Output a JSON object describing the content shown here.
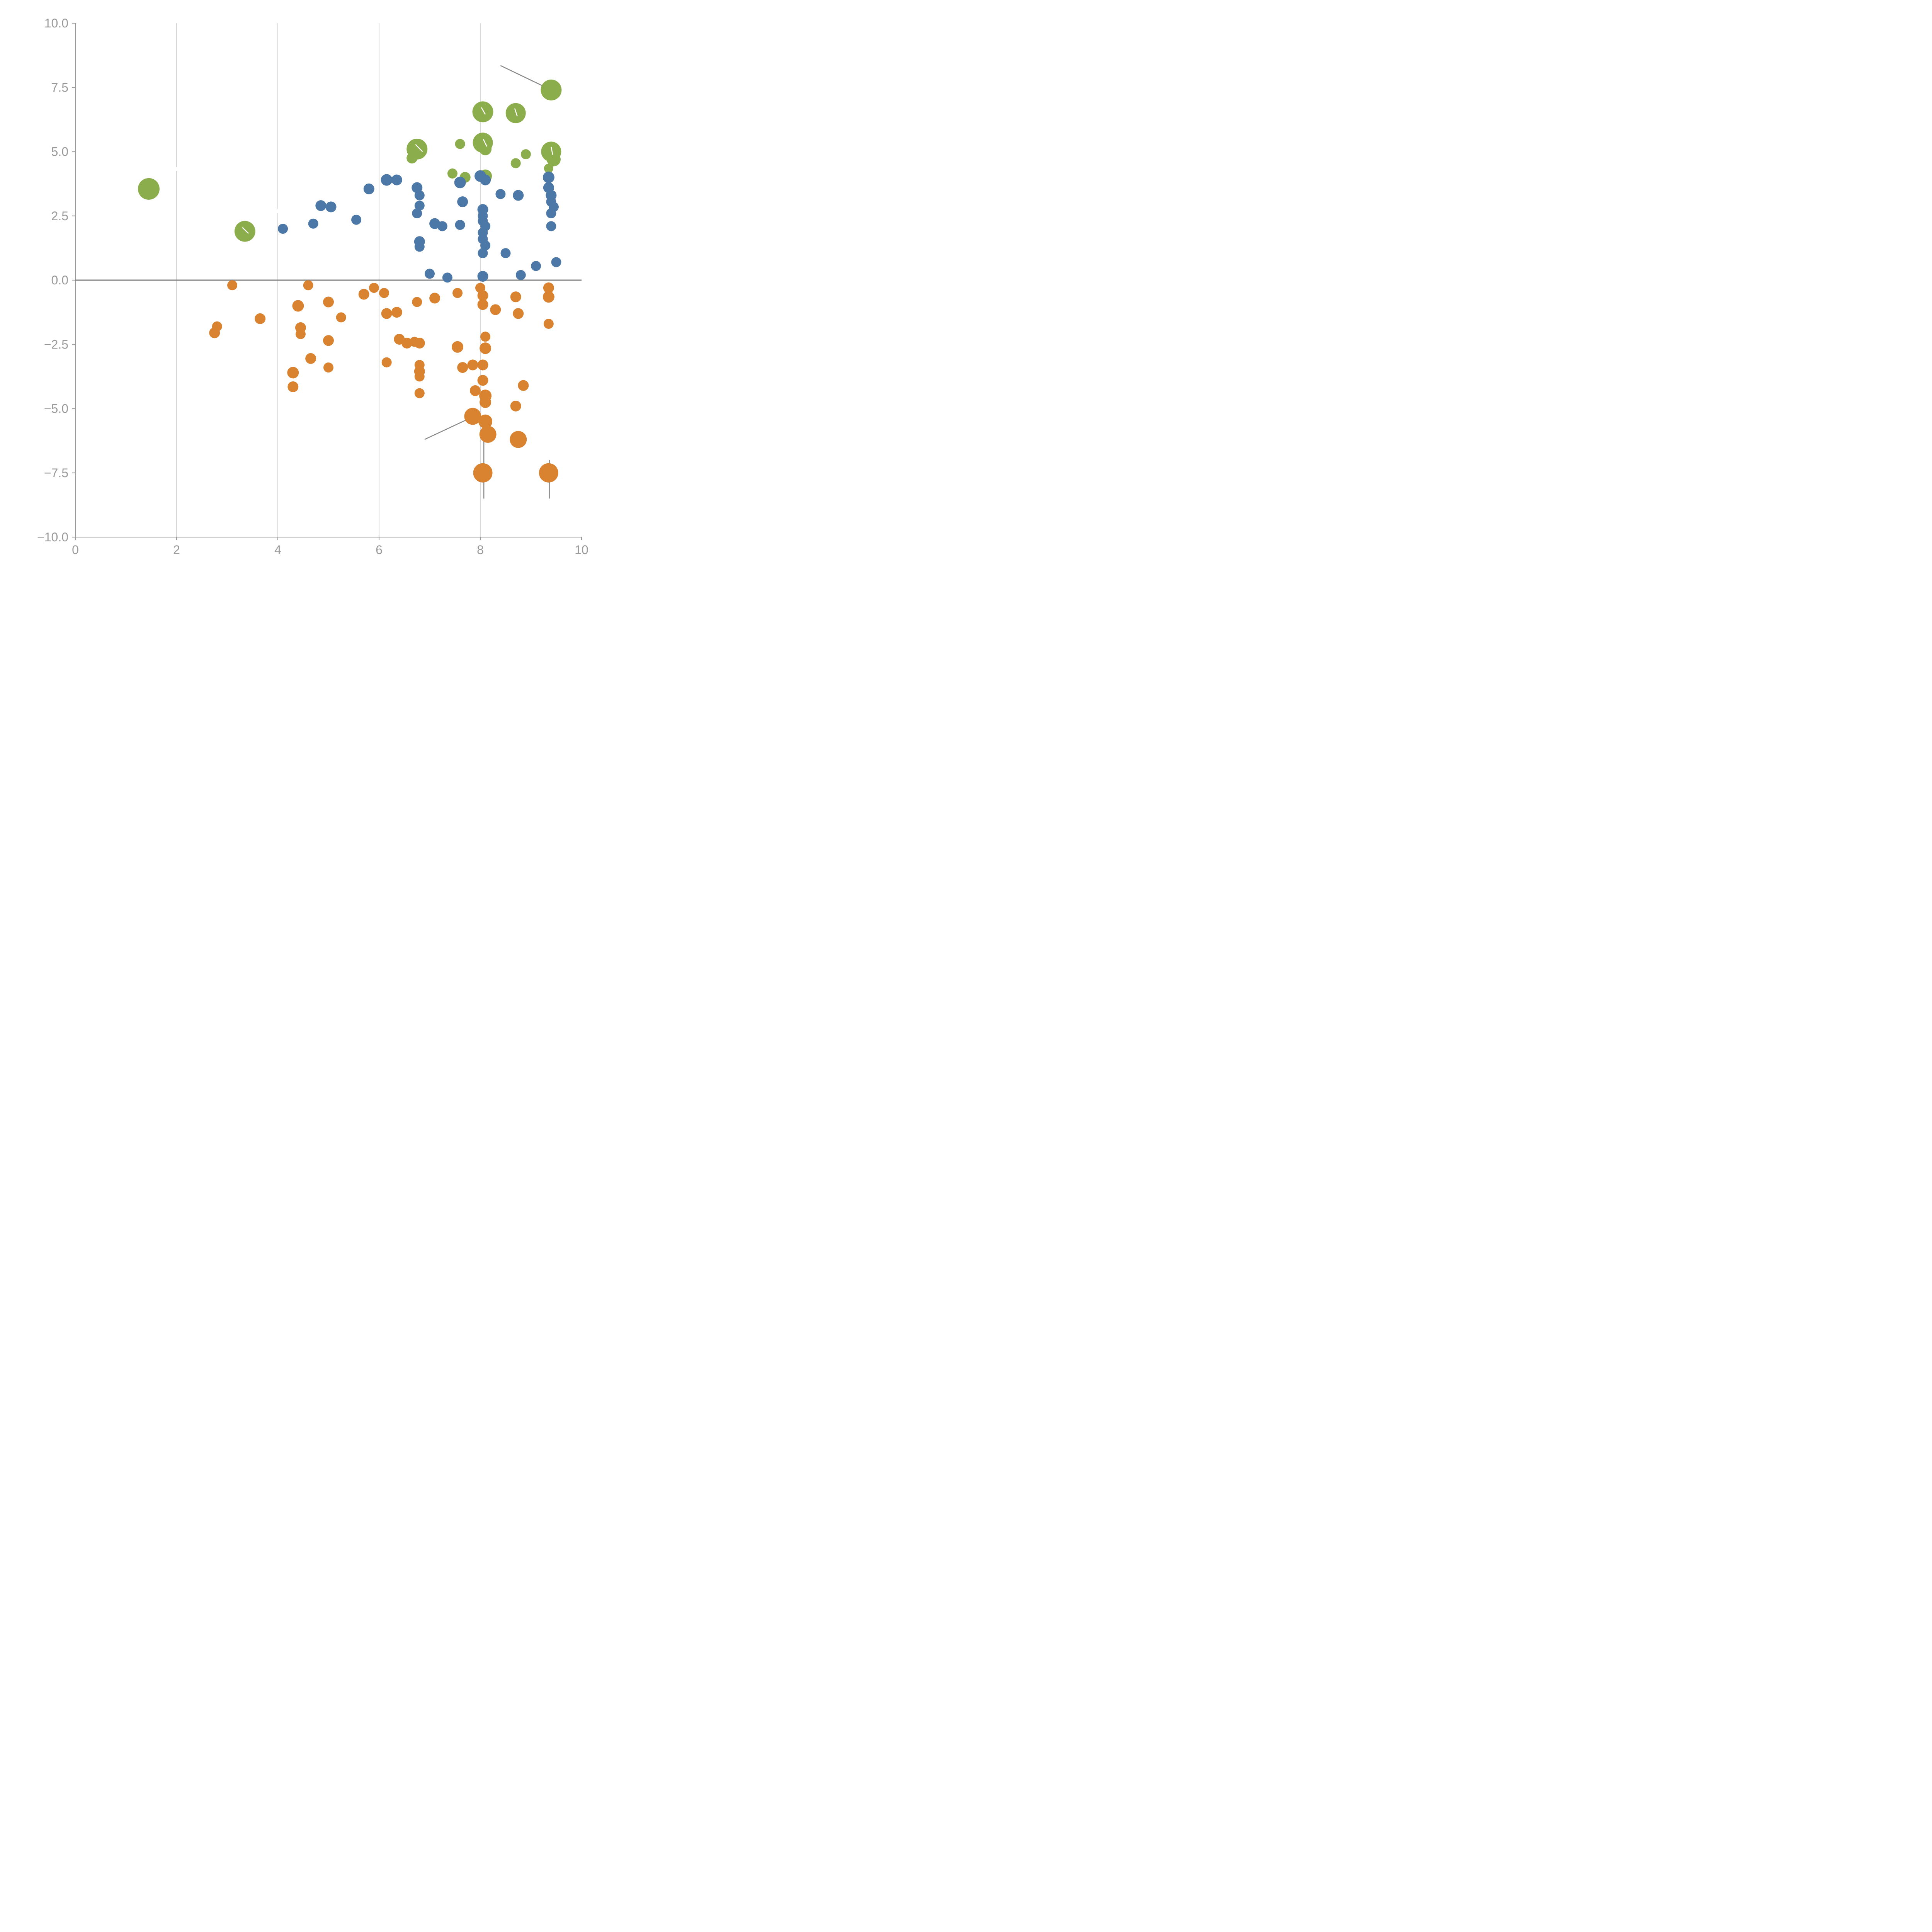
{
  "chart_data": {
    "type": "scatter",
    "title": "",
    "xlabel": "",
    "ylabel": "",
    "xlim": [
      0,
      10
    ],
    "ylim": [
      -10,
      10
    ],
    "x_ticks": [
      0,
      2,
      4,
      6,
      8,
      10
    ],
    "x_tick_labels": [
      "0",
      "2",
      "4",
      "6",
      "8",
      "10"
    ],
    "y_ticks": [
      -10,
      -7.5,
      -5,
      -2.5,
      0,
      2.5,
      5,
      7.5,
      10
    ],
    "y_tick_labels": [
      "−10.0",
      "−7.5",
      "−5.0",
      "−2.5",
      "0.0",
      "2.5",
      "5.0",
      "7.5",
      "10.0"
    ],
    "grid": "vertical-only",
    "zero_line": true,
    "legend": "none",
    "colors": {
      "grid": "#c9c9c9",
      "zero_line": "#7f7f7f",
      "spine": "#9a9a9a",
      "tick_label": "#9a9a9a",
      "annotation_line": "#888888",
      "annotation_line_white": "#ffffff"
    },
    "series": [
      {
        "name": "green",
        "color": "#8cad4b",
        "points": [
          [
            1.45,
            3.55,
            28
          ],
          [
            3.35,
            1.9,
            27
          ],
          [
            6.75,
            5.1,
            27
          ],
          [
            6.65,
            4.75,
            14
          ],
          [
            7.45,
            4.15,
            13
          ],
          [
            7.6,
            5.3,
            13
          ],
          [
            7.7,
            4.0,
            14
          ],
          [
            8.05,
            6.55,
            27
          ],
          [
            8.05,
            5.35,
            26
          ],
          [
            8.1,
            5.1,
            16
          ],
          [
            8.1,
            4.05,
            17
          ],
          [
            8.7,
            6.5,
            26
          ],
          [
            8.7,
            4.55,
            13
          ],
          [
            8.9,
            4.9,
            13
          ],
          [
            9.4,
            7.4,
            27
          ],
          [
            9.4,
            5.0,
            26
          ],
          [
            9.45,
            4.7,
            18
          ],
          [
            9.35,
            4.35,
            12
          ]
        ]
      },
      {
        "name": "blue",
        "color": "#4c78a8",
        "points": [
          [
            4.1,
            2.0,
            13
          ],
          [
            4.7,
            2.2,
            13
          ],
          [
            4.85,
            2.9,
            14
          ],
          [
            5.05,
            2.85,
            14
          ],
          [
            5.55,
            2.35,
            13
          ],
          [
            5.8,
            3.55,
            14
          ],
          [
            6.15,
            3.9,
            15
          ],
          [
            6.35,
            3.9,
            14
          ],
          [
            6.75,
            3.6,
            14
          ],
          [
            6.8,
            3.3,
            13
          ],
          [
            6.8,
            2.9,
            13
          ],
          [
            6.75,
            2.6,
            13
          ],
          [
            6.8,
            1.5,
            14
          ],
          [
            6.8,
            1.3,
            13
          ],
          [
            7.0,
            0.25,
            13
          ],
          [
            7.1,
            2.2,
            14
          ],
          [
            7.25,
            2.1,
            13
          ],
          [
            7.35,
            0.1,
            13
          ],
          [
            7.6,
            3.8,
            15
          ],
          [
            7.65,
            3.05,
            14
          ],
          [
            7.6,
            2.15,
            13
          ],
          [
            8.0,
            4.05,
            15
          ],
          [
            8.1,
            3.9,
            14
          ],
          [
            8.05,
            2.75,
            14
          ],
          [
            8.05,
            2.5,
            13
          ],
          [
            8.05,
            2.3,
            13
          ],
          [
            8.1,
            2.1,
            13
          ],
          [
            8.05,
            1.85,
            13
          ],
          [
            8.05,
            1.6,
            13
          ],
          [
            8.1,
            1.35,
            13
          ],
          [
            8.05,
            1.05,
            13
          ],
          [
            8.05,
            0.15,
            14
          ],
          [
            8.4,
            3.35,
            13
          ],
          [
            8.5,
            1.05,
            13
          ],
          [
            8.75,
            3.3,
            14
          ],
          [
            8.8,
            0.2,
            13
          ],
          [
            9.1,
            0.55,
            13
          ],
          [
            9.35,
            4.0,
            15
          ],
          [
            9.35,
            3.6,
            14
          ],
          [
            9.4,
            3.3,
            14
          ],
          [
            9.4,
            3.05,
            13
          ],
          [
            9.45,
            2.85,
            13
          ],
          [
            9.4,
            2.6,
            13
          ],
          [
            9.4,
            2.1,
            13
          ],
          [
            9.5,
            0.7,
            13
          ]
        ]
      },
      {
        "name": "orange",
        "color": "#d9822f",
        "points": [
          [
            3.1,
            -0.2,
            13
          ],
          [
            2.75,
            -2.05,
            14
          ],
          [
            2.8,
            -1.8,
            13
          ],
          [
            3.65,
            -1.5,
            14
          ],
          [
            4.3,
            -4.15,
            14
          ],
          [
            4.3,
            -3.6,
            15
          ],
          [
            4.4,
            -1.0,
            15
          ],
          [
            4.45,
            -1.85,
            14
          ],
          [
            4.45,
            -2.1,
            13
          ],
          [
            4.6,
            -0.2,
            13
          ],
          [
            4.65,
            -3.05,
            14
          ],
          [
            5.0,
            -0.85,
            14
          ],
          [
            5.0,
            -2.35,
            14
          ],
          [
            5.0,
            -3.4,
            13
          ],
          [
            5.25,
            -1.45,
            13
          ],
          [
            5.7,
            -0.55,
            14
          ],
          [
            5.9,
            -0.3,
            13
          ],
          [
            6.1,
            -0.5,
            13
          ],
          [
            6.15,
            -1.3,
            14
          ],
          [
            6.35,
            -1.25,
            14
          ],
          [
            6.15,
            -3.2,
            13
          ],
          [
            6.4,
            -2.3,
            14
          ],
          [
            6.55,
            -2.45,
            14
          ],
          [
            6.7,
            -2.4,
            13
          ],
          [
            6.75,
            -0.85,
            13
          ],
          [
            6.8,
            -2.45,
            14
          ],
          [
            6.8,
            -3.3,
            13
          ],
          [
            6.8,
            -3.55,
            14
          ],
          [
            6.8,
            -3.75,
            13
          ],
          [
            6.8,
            -4.4,
            13
          ],
          [
            7.1,
            -0.7,
            14
          ],
          [
            7.55,
            -0.5,
            13
          ],
          [
            7.55,
            -2.6,
            15
          ],
          [
            7.65,
            -3.4,
            14
          ],
          [
            7.85,
            -3.3,
            14
          ],
          [
            7.85,
            -5.3,
            22
          ],
          [
            7.9,
            -4.3,
            14
          ],
          [
            8.0,
            -0.3,
            13
          ],
          [
            8.05,
            -0.6,
            14
          ],
          [
            8.05,
            -0.95,
            14
          ],
          [
            8.1,
            -2.2,
            13
          ],
          [
            8.1,
            -2.65,
            15
          ],
          [
            8.05,
            -3.3,
            14
          ],
          [
            8.05,
            -3.9,
            14
          ],
          [
            8.1,
            -4.5,
            16
          ],
          [
            8.1,
            -4.75,
            15
          ],
          [
            8.1,
            -5.5,
            18
          ],
          [
            8.15,
            -6.0,
            22
          ],
          [
            8.05,
            -7.5,
            25
          ],
          [
            8.3,
            -1.15,
            14
          ],
          [
            8.7,
            -0.65,
            14
          ],
          [
            8.75,
            -1.3,
            14
          ],
          [
            8.85,
            -4.1,
            14
          ],
          [
            8.7,
            -4.9,
            14
          ],
          [
            8.75,
            -6.2,
            22
          ],
          [
            9.35,
            -0.3,
            14
          ],
          [
            9.35,
            -0.65,
            15
          ],
          [
            9.35,
            -1.7,
            13
          ],
          [
            9.35,
            -7.5,
            25
          ]
        ]
      }
    ],
    "annotation_lines_under": [
      {
        "x1": 8.4,
        "y1": 8.35,
        "x2": 9.35,
        "y2": 7.45
      },
      {
        "x1": 6.9,
        "y1": -6.2,
        "x2": 7.82,
        "y2": -5.35
      },
      {
        "x1": 8.07,
        "y1": -6.1,
        "x2": 8.07,
        "y2": -8.5
      },
      {
        "x1": 9.37,
        "y1": -7.0,
        "x2": 9.37,
        "y2": -8.5
      }
    ],
    "annotation_lines_white": [
      {
        "x1": 6.72,
        "y1": 5.28,
        "x2": 6.86,
        "y2": 5.0
      },
      {
        "x1": 3.3,
        "y1": 2.05,
        "x2": 3.42,
        "y2": 1.82
      },
      {
        "x1": 8.02,
        "y1": 6.72,
        "x2": 8.1,
        "y2": 6.45
      },
      {
        "x1": 8.68,
        "y1": 6.68,
        "x2": 8.73,
        "y2": 6.38
      },
      {
        "x1": 9.4,
        "y1": 5.18,
        "x2": 9.43,
        "y2": 4.88
      },
      {
        "x1": 8.06,
        "y1": 5.48,
        "x2": 8.13,
        "y2": 5.2
      },
      {
        "x1": 2.0,
        "y1": 4.4,
        "x2": 2.0,
        "y2": 4.25
      },
      {
        "x1": 4.0,
        "y1": 2.78,
        "x2": 4.0,
        "y2": 2.6
      }
    ]
  }
}
